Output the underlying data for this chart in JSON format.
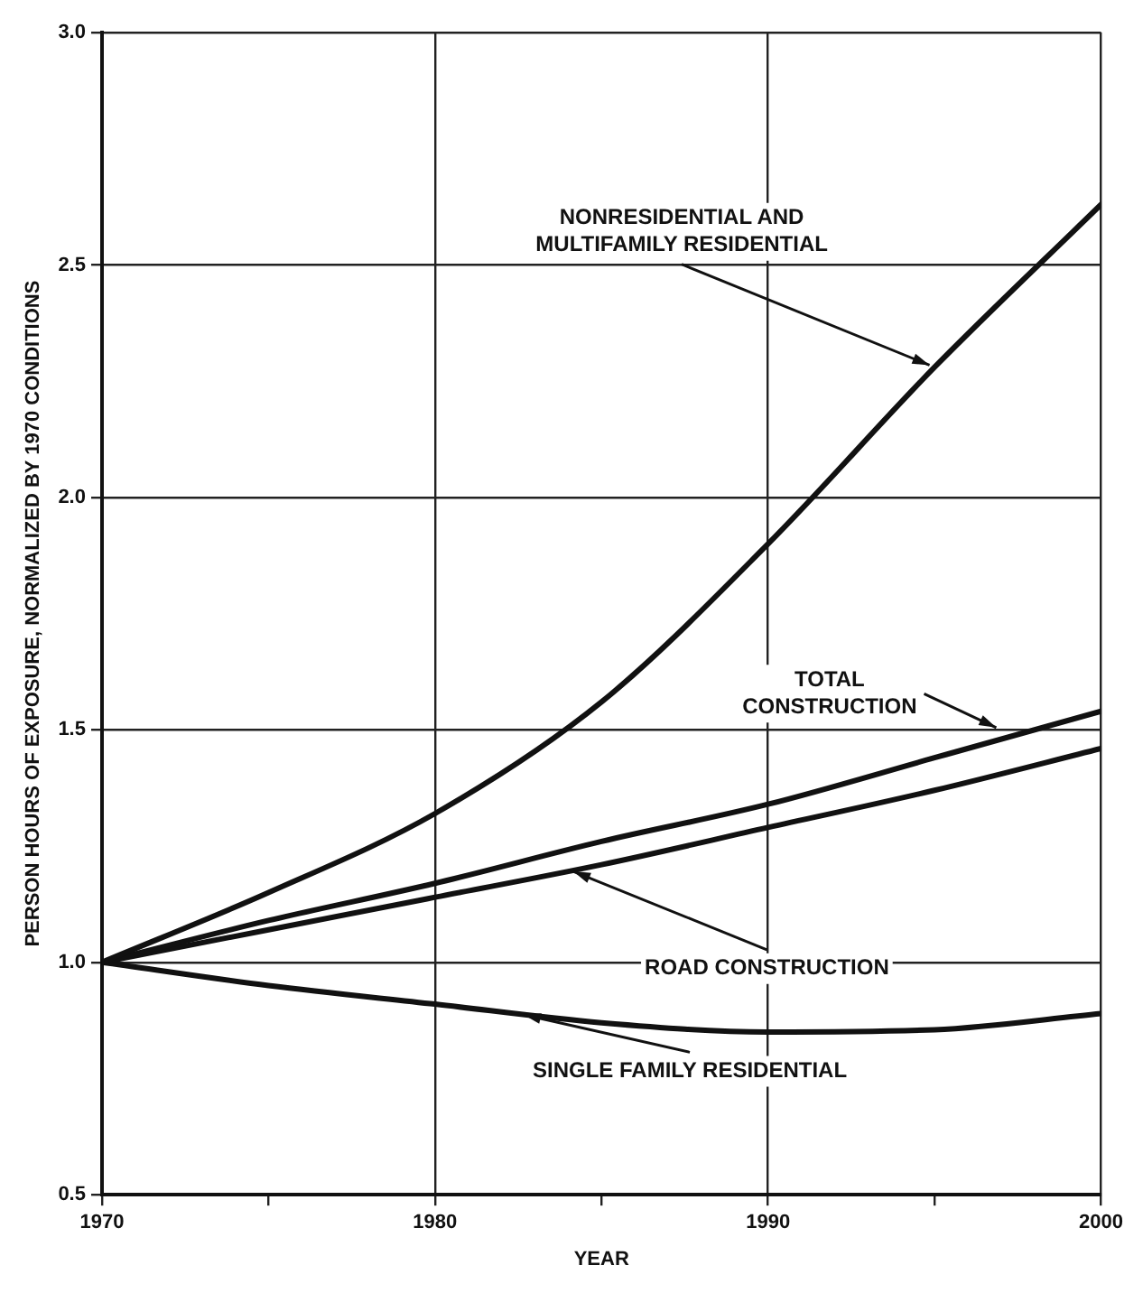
{
  "chart_data": {
    "type": "line",
    "xlabel": "YEAR",
    "ylabel": "PERSON HOURS OF EXPOSURE, NORMALIZED BY 1970 CONDITIONS",
    "x": [
      1970,
      1975,
      1980,
      1985,
      1990,
      1995,
      2000
    ],
    "series": [
      {
        "color": "#111111",
        "values": [
          1.0,
          1.15,
          1.32,
          1.56,
          1.9,
          2.28,
          2.63
        ]
      },
      {
        "color": "#111111",
        "values": [
          1.0,
          1.09,
          1.17,
          1.26,
          1.34,
          1.44,
          1.54
        ]
      },
      {
        "color": "#111111",
        "values": [
          1.0,
          1.07,
          1.14,
          1.21,
          1.29,
          1.37,
          1.46
        ]
      },
      {
        "color": "#111111",
        "values": [
          1.0,
          0.95,
          0.91,
          0.87,
          0.85,
          0.855,
          0.89
        ]
      }
    ],
    "xlim": [
      1970,
      2000
    ],
    "xticks": [
      1970,
      {
        "value": 1975,
        "label": null
      },
      1980,
      {
        "value": 1985,
        "label": null
      },
      1990,
      {
        "value": 1995,
        "label": null
      },
      2000
    ],
    "ylim": [
      0.5,
      3.0
    ],
    "yticks": [
      {
        "value": 0.5,
        "label": "0.5"
      },
      {
        "value": 1.0,
        "label": "1.0"
      },
      {
        "value": 1.5,
        "label": "1.5"
      },
      {
        "value": 2.0,
        "label": "2.0"
      },
      {
        "value": 2.5,
        "label": "2.5"
      },
      {
        "value": 3.0,
        "label": "3.0"
      }
    ],
    "grid": true,
    "marker": "none",
    "line_style": "solid",
    "legend": false,
    "annotations": [
      {
        "text": "NONRESIDENTIAL AND\nMULTIFAMILY RESIDENTIAL",
        "x": 1995,
        "y": 2.28
      },
      {
        "text": "TOTAL\nCONSTRUCTION",
        "x": 1997,
        "y": 1.5
      },
      {
        "text": "ROAD CONSTRUCTION",
        "x": 1984,
        "y": 1.2
      },
      {
        "text": "SINGLE FAMILY RESIDENTIAL",
        "x": 1982.5,
        "y": 0.89
      }
    ]
  }
}
